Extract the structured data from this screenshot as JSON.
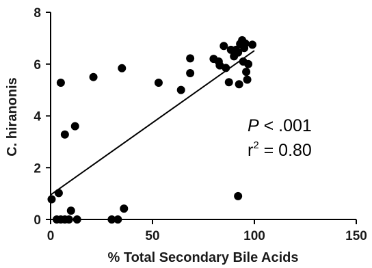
{
  "chart_data": {
    "type": "scatter",
    "title": "",
    "xlabel": "% Total Secondary Bile Acids",
    "ylabel": "C. hiranonis",
    "xlim": [
      0,
      150
    ],
    "ylim": [
      0,
      8
    ],
    "xticks": [
      0,
      50,
      100,
      150
    ],
    "yticks": [
      0,
      2,
      4,
      6,
      8
    ],
    "xtick_labels": [
      "0",
      "50",
      "100",
      "150"
    ],
    "ytick_labels": [
      "0",
      "2",
      "4",
      "6",
      "8"
    ],
    "grid": false,
    "legend": "none",
    "point_color": "#000000",
    "points": [
      {
        "x": 0.5,
        "y": 0.78
      },
      {
        "x": 3,
        "y": 0
      },
      {
        "x": 4,
        "y": 1.02
      },
      {
        "x": 5,
        "y": 0
      },
      {
        "x": 7,
        "y": 0
      },
      {
        "x": 9,
        "y": 0
      },
      {
        "x": 10,
        "y": 0.34
      },
      {
        "x": 13,
        "y": 0
      },
      {
        "x": 30,
        "y": 0
      },
      {
        "x": 33,
        "y": 0
      },
      {
        "x": 36,
        "y": 0.42
      },
      {
        "x": 92,
        "y": 0.9
      },
      {
        "x": 5,
        "y": 5.28
      },
      {
        "x": 7,
        "y": 3.28
      },
      {
        "x": 12,
        "y": 3.6
      },
      {
        "x": 21,
        "y": 5.5
      },
      {
        "x": 35,
        "y": 5.84
      },
      {
        "x": 53,
        "y": 5.28
      },
      {
        "x": 64,
        "y": 5
      },
      {
        "x": 68.5,
        "y": 6.22
      },
      {
        "x": 68.5,
        "y": 5.65
      },
      {
        "x": 80,
        "y": 6.2
      },
      {
        "x": 82.5,
        "y": 6.1
      },
      {
        "x": 83,
        "y": 5.95
      },
      {
        "x": 85,
        "y": 6.7
      },
      {
        "x": 86,
        "y": 5.85
      },
      {
        "x": 87.5,
        "y": 5.3
      },
      {
        "x": 88.5,
        "y": 6.55
      },
      {
        "x": 90,
        "y": 6.3
      },
      {
        "x": 91,
        "y": 6.55
      },
      {
        "x": 92,
        "y": 6.45
      },
      {
        "x": 92.5,
        "y": 5.22
      },
      {
        "x": 93,
        "y": 6.78
      },
      {
        "x": 94,
        "y": 6.92
      },
      {
        "x": 94.5,
        "y": 6.1
      },
      {
        "x": 95,
        "y": 6.62
      },
      {
        "x": 95.5,
        "y": 6.8
      },
      {
        "x": 96,
        "y": 5.7
      },
      {
        "x": 96.5,
        "y": 5.4
      },
      {
        "x": 97,
        "y": 6.0
      },
      {
        "x": 99,
        "y": 6.75
      }
    ],
    "fit_line": {
      "x": [
        0,
        100
      ],
      "y": [
        0.95,
        6.52
      ]
    },
    "annotations": {
      "p_letter": "P",
      "p_rest": " < .001",
      "r_base": "r",
      "r_sup": "2",
      "r_rest": " = 0.80"
    }
  }
}
